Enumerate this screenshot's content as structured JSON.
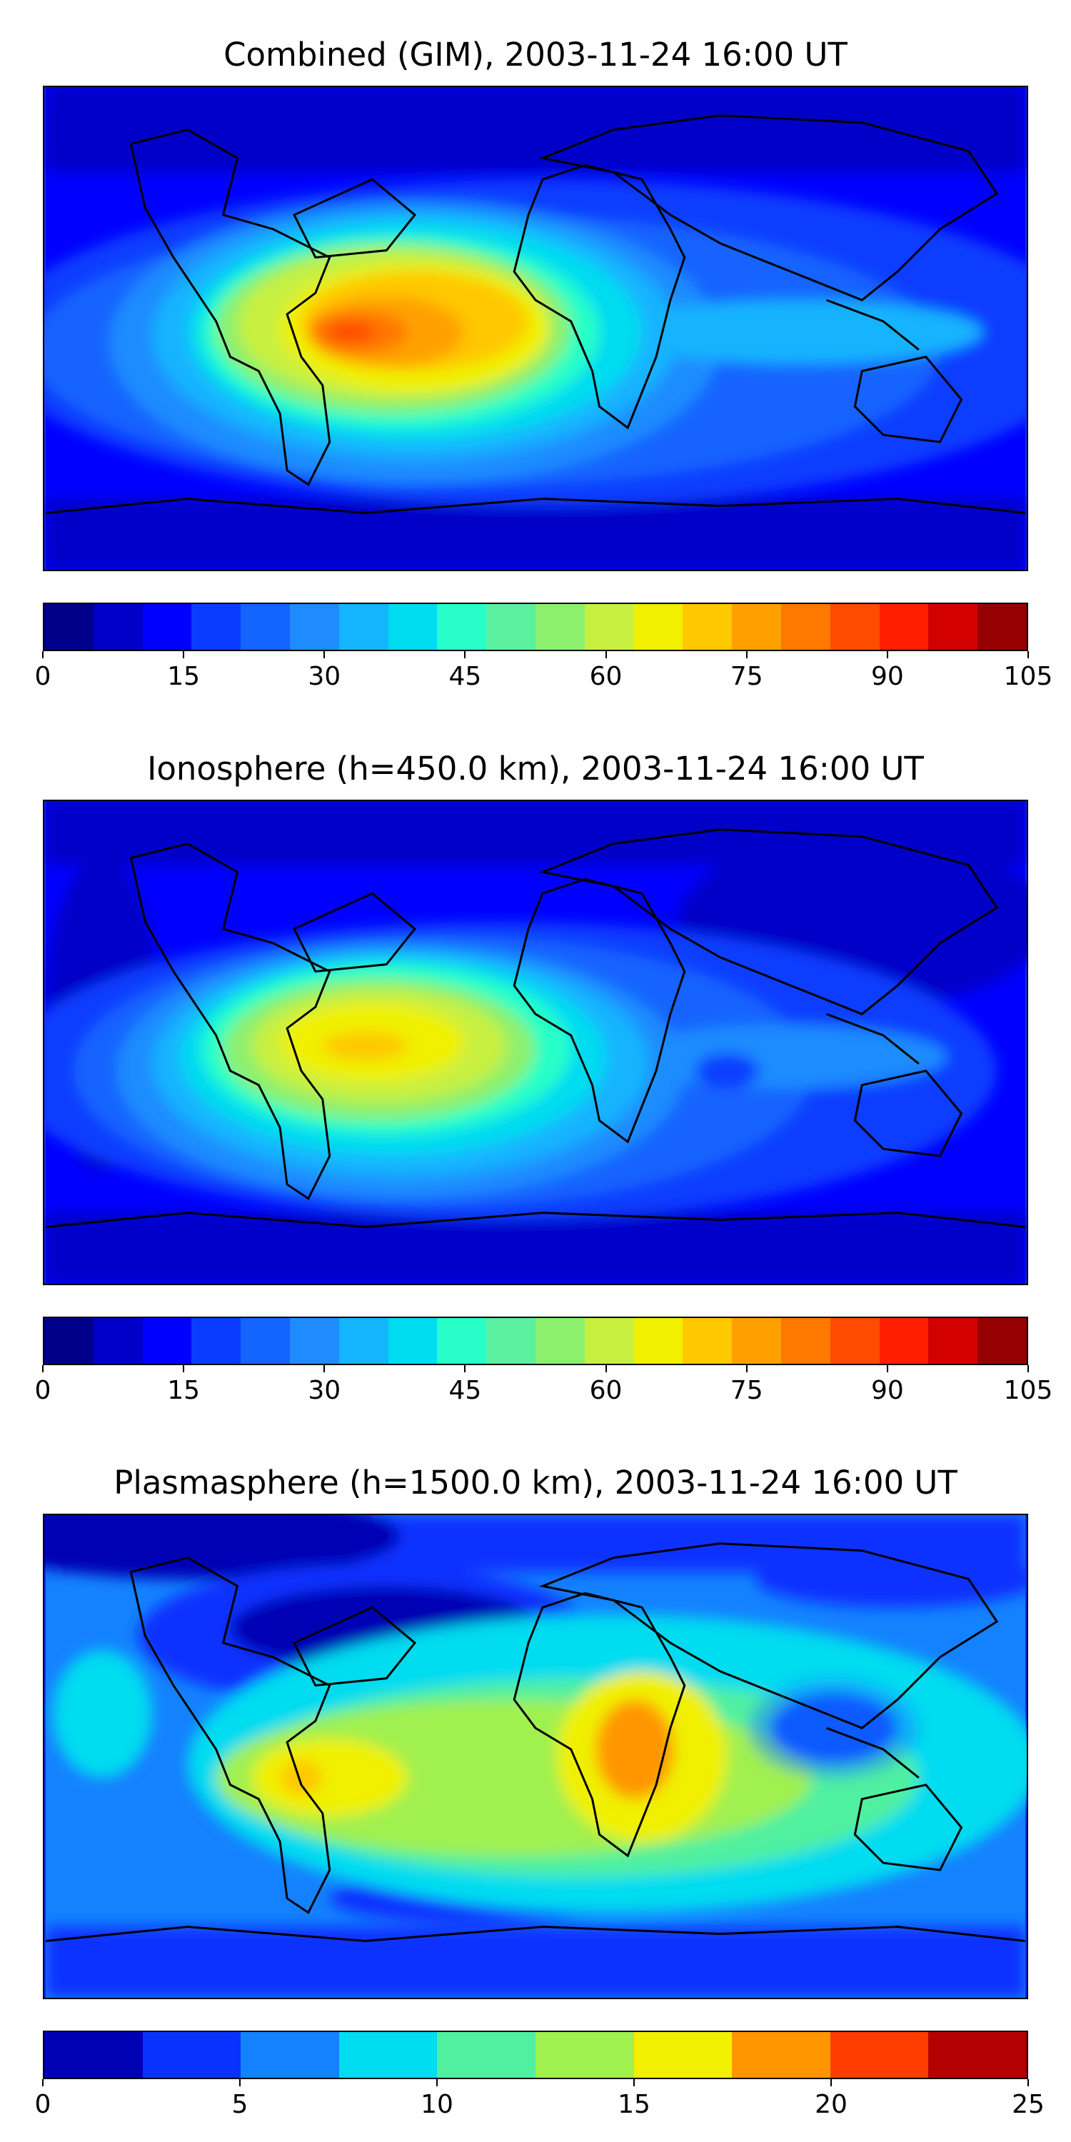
{
  "panels": [
    {
      "title": "Combined (GIM), 2003-11-24 16:00 UT",
      "colorbar": {
        "min": 0,
        "max": 105,
        "step": 5,
        "ticks": [
          "0",
          "15",
          "30",
          "45",
          "60",
          "75",
          "90",
          "105"
        ],
        "colors": [
          "#00008b",
          "#0000c8",
          "#0000ff",
          "#0a3cff",
          "#1464ff",
          "#1e8cff",
          "#14b4ff",
          "#00dcf0",
          "#28ffc8",
          "#5af0a0",
          "#8cf06e",
          "#c8f040",
          "#f0f000",
          "#ffc800",
          "#ffa000",
          "#ff7800",
          "#ff4b00",
          "#ff1e00",
          "#d20000",
          "#960000"
        ]
      }
    },
    {
      "title": "Ionosphere  (h=450.0 km), 2003-11-24 16:00 UT",
      "colorbar": {
        "min": 0,
        "max": 105,
        "step": 5,
        "ticks": [
          "0",
          "15",
          "30",
          "45",
          "60",
          "75",
          "90",
          "105"
        ],
        "colors": [
          "#00008b",
          "#0000c8",
          "#0000ff",
          "#0a3cff",
          "#1464ff",
          "#1e8cff",
          "#14b4ff",
          "#00dcf0",
          "#28ffc8",
          "#5af0a0",
          "#8cf06e",
          "#c8f040",
          "#f0f000",
          "#ffc800",
          "#ffa000",
          "#ff7800",
          "#ff4b00",
          "#ff1e00",
          "#d20000",
          "#960000"
        ]
      }
    },
    {
      "title": "Plasmasphere (h=1500.0 km), 2003-11-24 16:00 UT",
      "colorbar": {
        "min": 0,
        "max": 25,
        "step": 2.5,
        "ticks": [
          "0",
          "5",
          "10",
          "15",
          "20",
          "25"
        ],
        "colors": [
          "#0000b4",
          "#0a32ff",
          "#1482ff",
          "#00dcf0",
          "#50f0a0",
          "#a0f050",
          "#f0f000",
          "#ff9600",
          "#ff3c00",
          "#b40000"
        ]
      }
    }
  ]
}
